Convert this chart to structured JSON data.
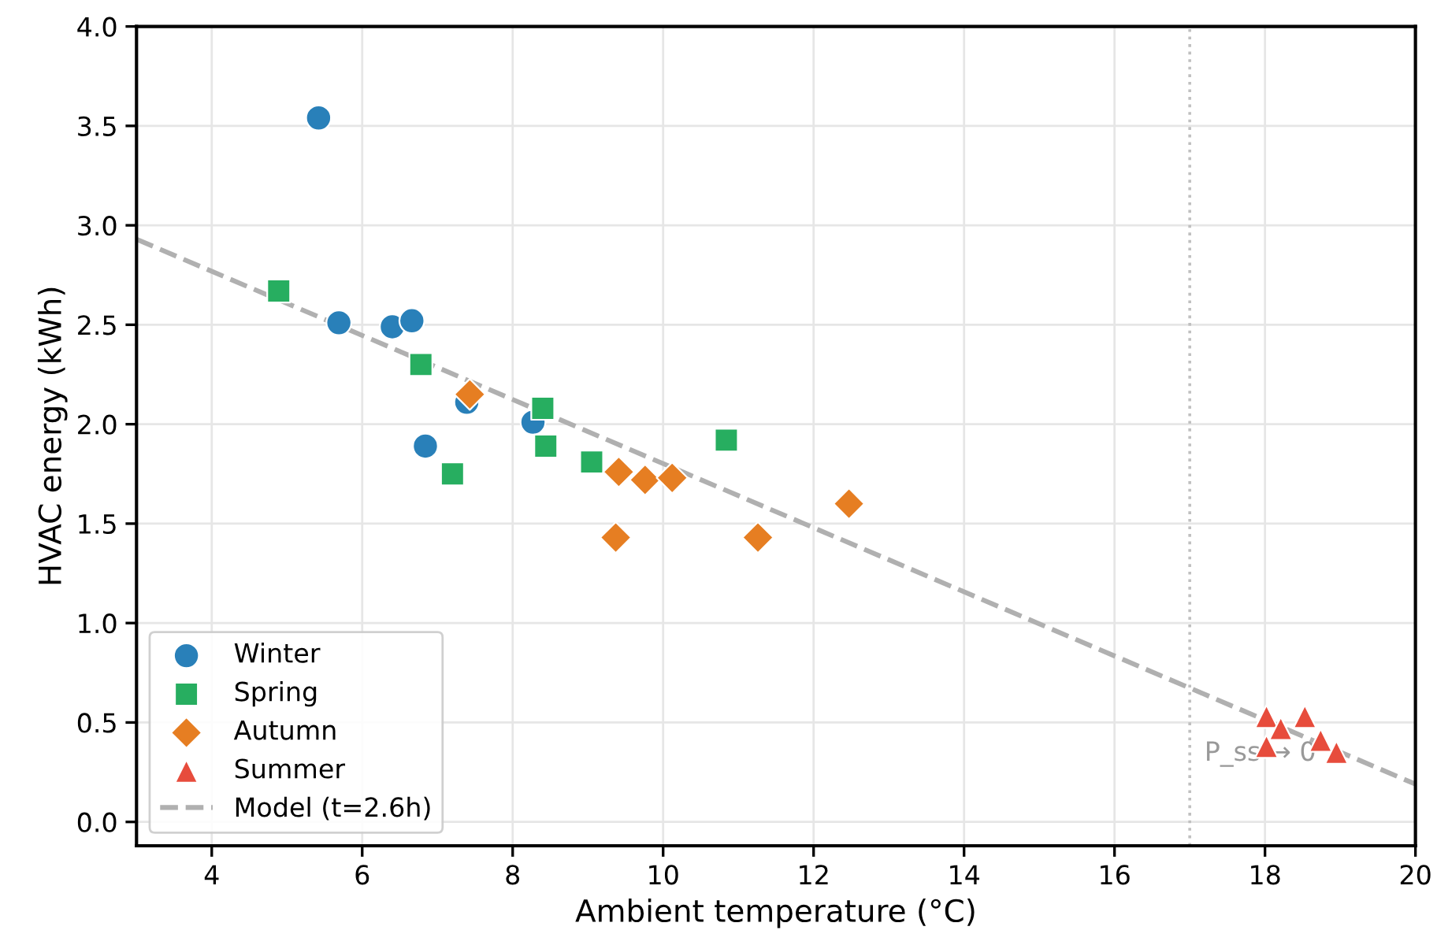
{
  "chart_data": {
    "type": "scatter",
    "xlabel": "Ambient temperature (°C)",
    "ylabel": "HVAC energy (kWh)",
    "xlim": [
      3,
      20
    ],
    "ylim": [
      -0.12,
      4.0
    ],
    "xticks": [
      4,
      6,
      8,
      10,
      12,
      14,
      16,
      18,
      20
    ],
    "yticks": [
      {
        "value": 0,
        "label": "0.0"
      },
      0.5,
      {
        "value": 1,
        "label": "1.0"
      },
      1.5,
      {
        "value": 2,
        "label": "2.0"
      },
      2.5,
      {
        "value": 3,
        "label": "3.0"
      },
      3.5,
      {
        "value": 4,
        "label": "4.0"
      }
    ],
    "grid": true,
    "legend": "bottom left",
    "series": [
      {
        "name": "Winter",
        "marker": "circle",
        "color": "#2980b9",
        "x": [
          5.42,
          5.69,
          6.4,
          6.66,
          6.84,
          7.39,
          8.27
        ],
        "values": [
          3.54,
          2.51,
          2.49,
          2.52,
          1.89,
          2.11,
          2.01
        ]
      },
      {
        "name": "Spring",
        "marker": "square",
        "color": "#27ae60",
        "x": [
          4.89,
          6.78,
          7.2,
          8.4,
          8.44,
          9.05,
          10.84
        ],
        "values": [
          2.67,
          2.3,
          1.75,
          2.08,
          1.89,
          1.81,
          1.92
        ]
      },
      {
        "name": "Autumn",
        "marker": "diamond",
        "color": "#e67e22",
        "x": [
          7.43,
          9.37,
          9.41,
          9.76,
          10.12,
          11.26,
          12.47
        ],
        "values": [
          2.15,
          1.43,
          1.76,
          1.72,
          1.73,
          1.43,
          1.6
        ]
      },
      {
        "name": "Summer",
        "marker": "triangle",
        "color": "#e74c3c",
        "x": [
          18.02,
          18.21,
          18.53,
          18.74,
          18.95,
          18.02
        ],
        "values": [
          0.53,
          0.47,
          0.53,
          0.41,
          0.35,
          0.38
        ]
      },
      {
        "name": "Model (t=2.6h)",
        "type": "line",
        "line_style": "dashed",
        "color": "#b0b0b0",
        "x": [
          3,
          20
        ],
        "values": [
          2.93,
          0.19
        ]
      }
    ],
    "ref_lines": [
      {
        "axis": "x",
        "value": 17,
        "color": "#c0c0c0",
        "line_style": "dotted"
      }
    ],
    "annotations": [
      "P_ss → 0"
    ]
  }
}
